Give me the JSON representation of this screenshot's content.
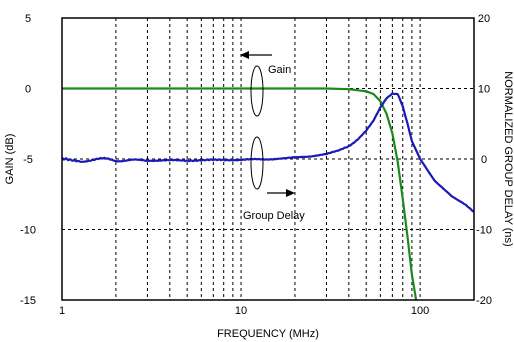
{
  "chart_data": {
    "type": "line",
    "xlabel": "FREQUENCY (MHz)",
    "ylabel": "GAIN (dB)",
    "y2label": "NORMALIZED GROUP DELAY (ns)",
    "x_scale": "log",
    "xlim": [
      1,
      200
    ],
    "ylim": [
      -15,
      5
    ],
    "y2lim": [
      -20,
      20
    ],
    "grid": true,
    "x_ticks": [
      1,
      10,
      100
    ],
    "y_ticks": [
      5,
      0,
      -5,
      -10,
      -15
    ],
    "y2_ticks": [
      20,
      10,
      0,
      -10,
      -20
    ],
    "annotations": {
      "gain": "Gain",
      "group_delay": "Group Delay"
    },
    "colors": {
      "gain": "#1a8a1a",
      "group_delay": "#1a1ab8",
      "grid": "#000000"
    },
    "series": [
      {
        "name": "Gain",
        "axis": "left",
        "x": [
          1,
          2,
          5,
          10,
          20,
          30,
          40,
          50,
          55,
          60,
          65,
          70,
          75,
          80,
          85,
          90,
          95
        ],
        "y": [
          0,
          0,
          0,
          0,
          0,
          0,
          -0.05,
          -0.2,
          -0.4,
          -0.9,
          -1.8,
          -3.2,
          -5.2,
          -7.8,
          -10.5,
          -13.2,
          -15
        ]
      },
      {
        "name": "Group Delay",
        "axis": "right",
        "x": [
          1,
          1.3,
          1.6,
          2,
          3,
          5,
          10,
          15,
          20,
          25,
          30,
          35,
          40,
          45,
          50,
          55,
          60,
          65,
          70,
          75,
          80,
          85,
          90,
          100,
          120,
          150,
          180,
          200
        ],
        "y": [
          0,
          -0.3,
          0.1,
          -0.2,
          -0.2,
          -0.2,
          -0.1,
          0,
          0.2,
          0.4,
          0.7,
          1.2,
          1.8,
          2.8,
          4,
          5.5,
          7.3,
          8.6,
          9.3,
          9.2,
          7.5,
          5,
          2.5,
          0,
          -3,
          -5.3,
          -6.5,
          -7.5
        ]
      }
    ]
  }
}
